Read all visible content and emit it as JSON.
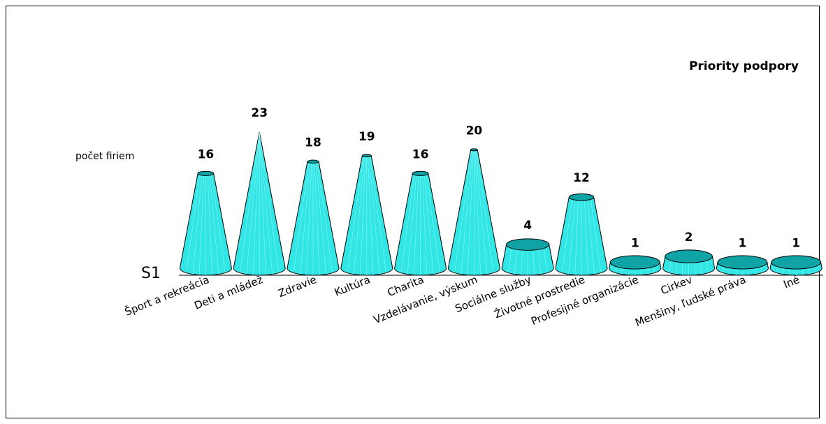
{
  "chart_data": {
    "type": "bar",
    "title": "Priority podpory",
    "ylabel": "počet firiem",
    "series": [
      {
        "name": "S1",
        "values": [
          16,
          23,
          18,
          19,
          16,
          20,
          4,
          12,
          1,
          2,
          1,
          1
        ]
      }
    ],
    "categories": [
      "Šport a rekreácia",
      "Deti a mládež",
      "Zdravie",
      "Kultúra",
      "Charita",
      "Vzdelávanie, výskum",
      "Sociálne služby",
      "Životné prostredie",
      "Profesijné organizácie",
      "Cirkev",
      "Menšiny, ľudské práva",
      "Iné"
    ],
    "ylim": [
      0,
      23
    ],
    "colors": {
      "fill": "#33e6e6",
      "dark": "#0fa3a6",
      "light": "#8ff5f5",
      "line": "#000000"
    }
  }
}
